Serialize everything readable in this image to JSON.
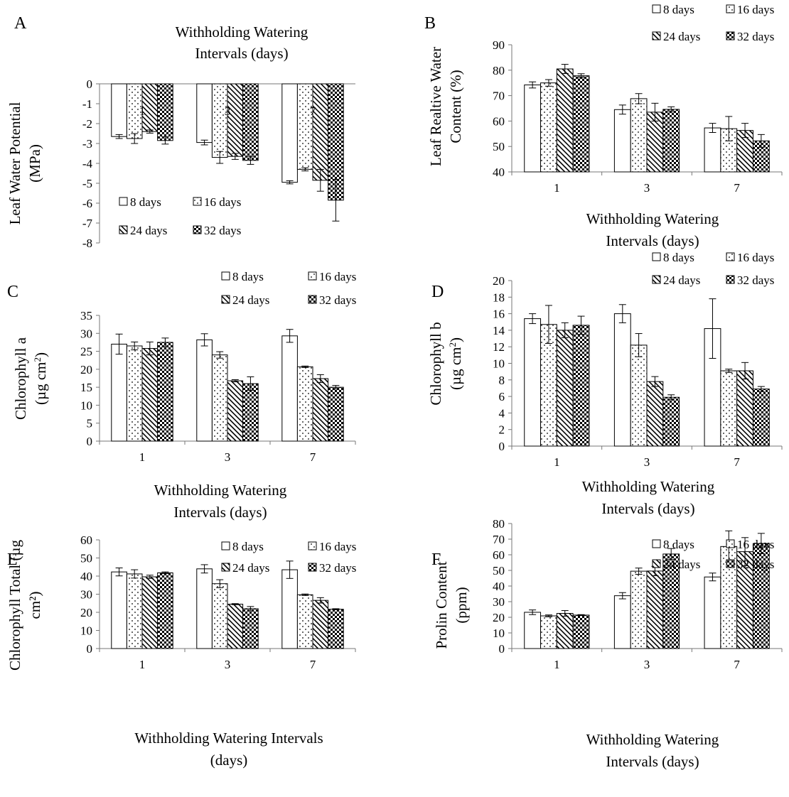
{
  "figure": {
    "patterns": [
      "white",
      "dots",
      "diagonal",
      "checker"
    ]
  },
  "chart_data": [
    {
      "panel": "A",
      "type": "bar",
      "title": "Withholding Watering Intervals (days)",
      "xlabel": "",
      "ylabel": "Leaf Water Potential (MPa)",
      "ylim": [
        -8,
        0
      ],
      "yticks": [
        0,
        -1,
        -2,
        -3,
        -4,
        -5,
        -6,
        -7,
        -8
      ],
      "categories": [
        "1",
        "3",
        "7"
      ],
      "category_labels_on_bars": true,
      "legend": "bottom-left",
      "series": [
        {
          "name": "8 days",
          "values": [
            -2.65,
            -2.95,
            -4.95
          ],
          "errors": [
            0.1,
            0.12,
            0.08
          ]
        },
        {
          "name": "16 days",
          "values": [
            -2.75,
            -3.7,
            -4.3
          ],
          "errors": [
            0.25,
            0.3,
            0.08
          ]
        },
        {
          "name": "24 days",
          "values": [
            -2.4,
            -3.65,
            -4.85
          ],
          "errors": [
            0.08,
            0.15,
            0.55
          ]
        },
        {
          "name": "32 days",
          "values": [
            -2.85,
            -3.85,
            -5.85
          ],
          "errors": [
            0.18,
            0.2,
            1.05
          ]
        }
      ]
    },
    {
      "panel": "B",
      "type": "bar",
      "xlabel": "Withholding Watering Intervals (days)",
      "ylabel": "Leaf Realtive Water Content (%)",
      "ylim": [
        40,
        90
      ],
      "yticks": [
        40,
        50,
        60,
        70,
        80,
        90
      ],
      "categories": [
        "1",
        "3",
        "7"
      ],
      "legend": "top-right",
      "series": [
        {
          "name": "8 days",
          "values": [
            74.2,
            64.5,
            57.3
          ],
          "errors": [
            1.2,
            1.8,
            1.8
          ]
        },
        {
          "name": "16 days",
          "values": [
            75,
            68.8,
            57
          ],
          "errors": [
            1.3,
            2,
            4.8
          ]
        },
        {
          "name": "24 days",
          "values": [
            80.5,
            63.5,
            56.3
          ],
          "errors": [
            1.8,
            3.5,
            2.8
          ]
        },
        {
          "name": "32 days",
          "values": [
            77.8,
            64.6,
            52.2
          ],
          "errors": [
            0.8,
            1,
            2.5
          ]
        }
      ]
    },
    {
      "panel": "C",
      "type": "bar",
      "xlabel": "Withholding Watering Intervals (days)",
      "ylabel": "Chlorophyll a (µg cm²)",
      "ylim": [
        0,
        35
      ],
      "yticks": [
        0,
        5,
        10,
        15,
        20,
        25,
        30,
        35
      ],
      "categories": [
        "1",
        "3",
        "7"
      ],
      "legend": "top-right",
      "series": [
        {
          "name": "8 days",
          "values": [
            27,
            28.2,
            29.3
          ],
          "errors": [
            2.8,
            1.7,
            1.8
          ]
        },
        {
          "name": "16 days",
          "values": [
            26.5,
            24,
            20.7
          ],
          "errors": [
            1.1,
            0.9,
            0.2
          ]
        },
        {
          "name": "24 days",
          "values": [
            25.8,
            16.8,
            17.4
          ],
          "errors": [
            1.8,
            0.3,
            1.1
          ]
        },
        {
          "name": "32 days",
          "values": [
            27.5,
            16,
            15
          ],
          "errors": [
            1.2,
            1.9,
            0.5
          ]
        }
      ]
    },
    {
      "panel": "D",
      "type": "bar",
      "xlabel": "Withholding Watering Intervals (days)",
      "ylabel": "Chlorophyll b (µg cm²)",
      "ylim": [
        0,
        20
      ],
      "yticks": [
        0,
        2,
        4,
        6,
        8,
        10,
        12,
        14,
        16,
        18,
        20
      ],
      "categories": [
        "1",
        "3",
        "7"
      ],
      "legend": "top-right",
      "series": [
        {
          "name": "8 days",
          "values": [
            15.4,
            16,
            14.2
          ],
          "errors": [
            0.6,
            1.1,
            3.6
          ]
        },
        {
          "name": "16 days",
          "values": [
            14.7,
            12.2,
            9.1
          ],
          "errors": [
            2.3,
            1.4,
            0.2
          ]
        },
        {
          "name": "24 days",
          "values": [
            14,
            7.8,
            9.1
          ],
          "errors": [
            0.9,
            0.6,
            1
          ]
        },
        {
          "name": "32 days",
          "values": [
            14.6,
            5.9,
            6.9
          ],
          "errors": [
            1.1,
            0.3,
            0.3
          ]
        }
      ]
    },
    {
      "panel": "E",
      "type": "bar",
      "xlabel": "Withholding Watering Intervals (days)",
      "ylabel": "Chlorophyll Total (µg cm²)",
      "ylim": [
        0,
        60
      ],
      "yticks": [
        0,
        10,
        20,
        30,
        40,
        50,
        60
      ],
      "categories": [
        "1",
        "3",
        "7"
      ],
      "legend": "top-right",
      "series": [
        {
          "name": "8 days",
          "values": [
            42.3,
            44,
            43.5
          ],
          "errors": [
            2.2,
            2.3,
            4.8
          ]
        },
        {
          "name": "16 days",
          "values": [
            41.2,
            35.8,
            29.7
          ],
          "errors": [
            2.3,
            2.2,
            0.4
          ]
        },
        {
          "name": "24 days",
          "values": [
            39.6,
            24.5,
            26.6
          ],
          "errors": [
            0.9,
            0.3,
            1.5
          ]
        },
        {
          "name": "32 days",
          "values": [
            41.8,
            22,
            21.7
          ],
          "errors": [
            0.5,
            1.2,
            0.3
          ]
        }
      ]
    },
    {
      "panel": "F",
      "type": "bar",
      "xlabel": "Withholding Watering Intervals (days)",
      "ylabel": "Prolin Content (ppm)",
      "ylim": [
        0,
        80
      ],
      "yticks": [
        0,
        10,
        20,
        30,
        40,
        50,
        60,
        70,
        80
      ],
      "categories": [
        "1",
        "3",
        "7"
      ],
      "legend": "top-right",
      "series": [
        {
          "name": "8 days",
          "values": [
            23.2,
            33.8,
            45.8
          ],
          "errors": [
            1.5,
            2,
            2.5
          ]
        },
        {
          "name": "16 days",
          "values": [
            20.9,
            49.5,
            65.3
          ],
          "errors": [
            0.6,
            2,
            10
          ]
        },
        {
          "name": "24 days",
          "values": [
            22.5,
            49.6,
            62
          ],
          "errors": [
            1.8,
            3,
            9
          ]
        },
        {
          "name": "32 days",
          "values": [
            21.4,
            60.5,
            67.2
          ],
          "errors": [
            0.3,
            3.5,
            6.5
          ]
        }
      ]
    }
  ]
}
